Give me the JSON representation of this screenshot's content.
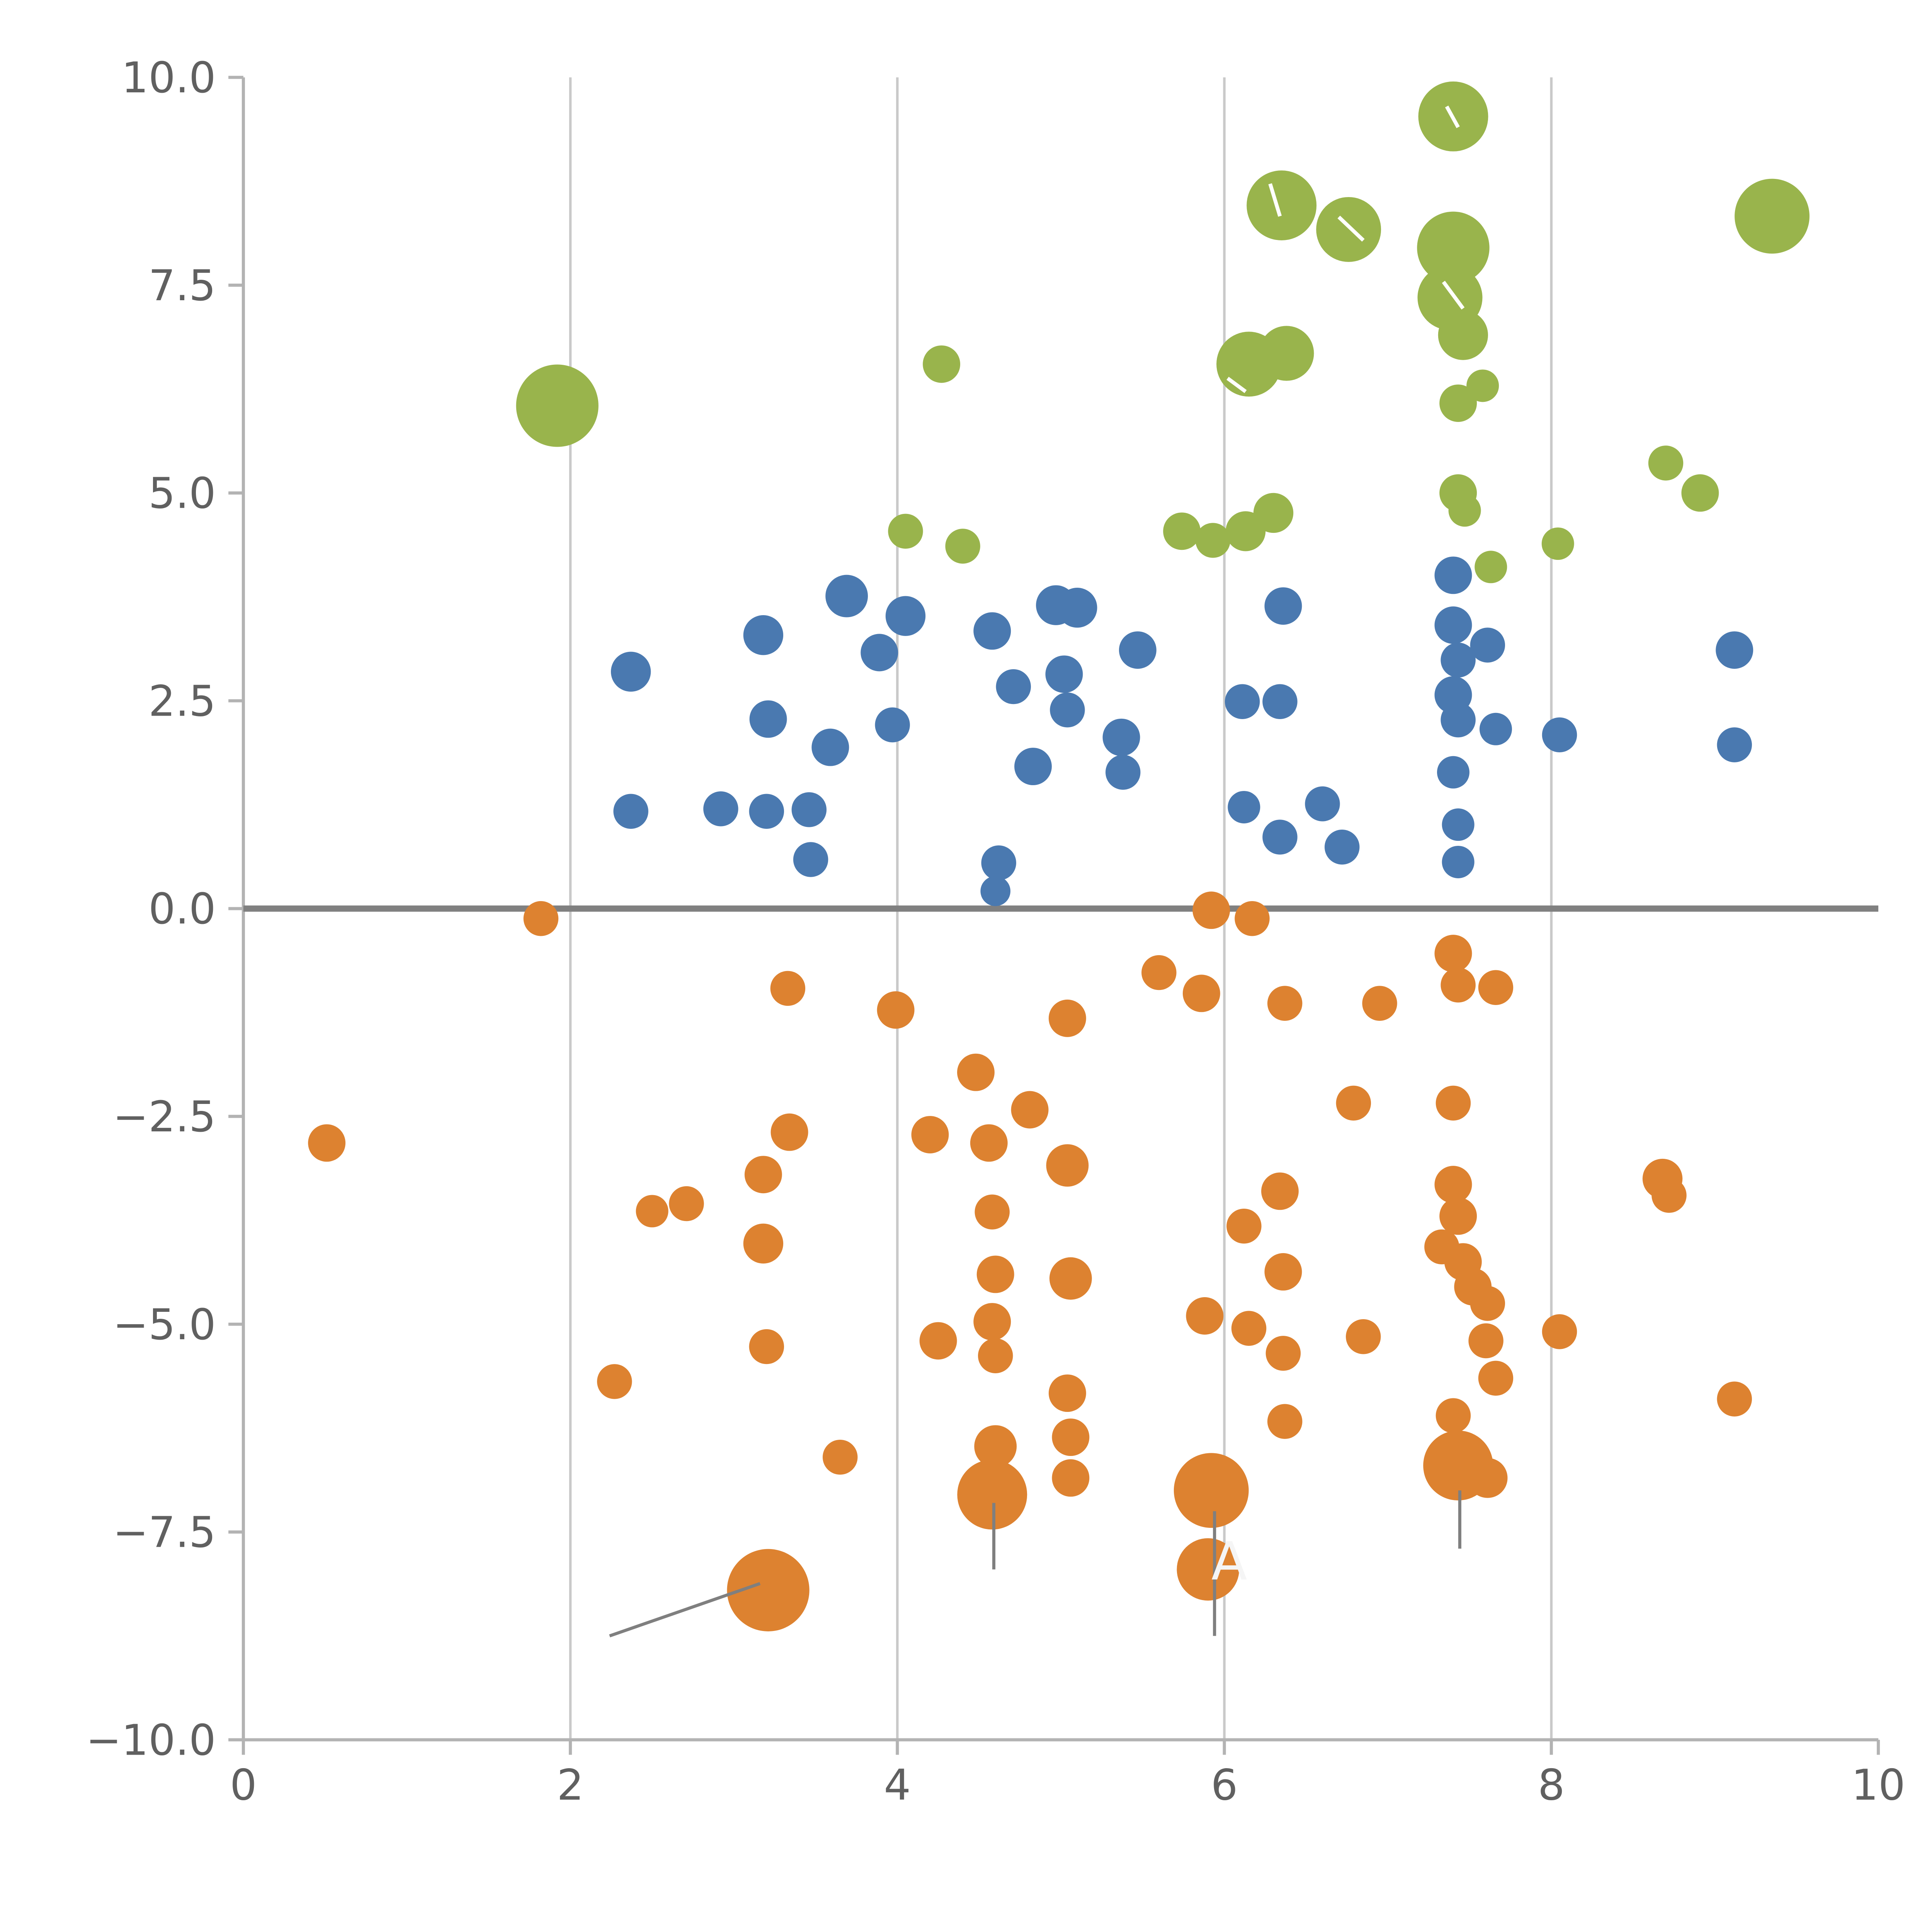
{
  "page": {
    "background": "#ffffff"
  },
  "chart_data": {
    "type": "scatter",
    "title": "",
    "xlabel": "",
    "ylabel": "",
    "xlim": [
      0,
      10
    ],
    "ylim": [
      -10,
      10
    ],
    "grid": {
      "vertical_x": [
        2,
        4,
        6,
        8
      ],
      "horizontal": false
    },
    "x_ticks": {
      "values": [
        0,
        2,
        4,
        6,
        8,
        10
      ],
      "labels": [
        "0",
        "2",
        "4",
        "6",
        "8",
        "10"
      ]
    },
    "y_ticks": {
      "values": [
        -10,
        -7.5,
        -5,
        -2.5,
        0,
        2.5,
        5,
        7.5,
        10
      ],
      "labels": [
        "−10.0",
        "−7.5",
        "−5.0",
        "−2.5",
        "0.0",
        "2.5",
        "5.0",
        "7.5",
        "10.0"
      ]
    },
    "zero_line_y": 0,
    "legend": null,
    "colors": {
      "green": "#99b44c",
      "blue": "#4a79b0",
      "orange": "#dd8230",
      "grid": "#c9c9c9",
      "spine": "#b3b3b3",
      "tick_label": "#606060",
      "zero_line": "#808080",
      "annotation_line": "#7f7f7f",
      "annotation_text": "#f5f5f5",
      "highlight": "#ffffff"
    },
    "series": [
      {
        "name": "green",
        "color": "#99b44c",
        "points": [
          [
            1.92,
            6.05,
            33
          ],
          [
            4.27,
            6.55,
            15
          ],
          [
            4.05,
            4.54,
            14
          ],
          [
            4.4,
            4.36,
            14
          ],
          [
            5.74,
            4.54,
            15
          ],
          [
            5.93,
            4.43,
            14
          ],
          [
            6.13,
            4.54,
            16
          ],
          [
            6.3,
            4.76,
            16
          ],
          [
            6.15,
            6.55,
            26
          ],
          [
            6.38,
            6.68,
            22
          ],
          [
            6.35,
            8.46,
            28
          ],
          [
            6.76,
            8.17,
            26
          ],
          [
            7.4,
            9.53,
            28
          ],
          [
            7.4,
            7.95,
            29
          ],
          [
            7.38,
            7.35,
            26
          ],
          [
            7.46,
            6.9,
            20
          ],
          [
            7.43,
            6.08,
            15
          ],
          [
            7.58,
            6.29,
            13
          ],
          [
            7.43,
            5.0,
            15
          ],
          [
            7.47,
            4.79,
            13
          ],
          [
            7.63,
            4.11,
            13
          ],
          [
            8.04,
            4.39,
            13
          ],
          [
            8.7,
            5.36,
            14
          ],
          [
            8.91,
            5.0,
            15
          ],
          [
            9.35,
            8.33,
            30
          ]
        ]
      },
      {
        "name": "blue",
        "color": "#4a79b0",
        "points": [
          [
            2.37,
            2.85,
            16
          ],
          [
            2.37,
            1.17,
            14
          ],
          [
            2.92,
            1.2,
            14
          ],
          [
            3.18,
            3.29,
            16
          ],
          [
            3.21,
            2.28,
            15
          ],
          [
            3.2,
            1.17,
            14
          ],
          [
            3.46,
            1.19,
            14
          ],
          [
            3.47,
            0.59,
            14
          ],
          [
            3.59,
            1.94,
            15
          ],
          [
            3.69,
            3.76,
            17
          ],
          [
            3.89,
            3.08,
            15
          ],
          [
            4.05,
            3.52,
            16
          ],
          [
            3.97,
            2.21,
            14
          ],
          [
            4.58,
            3.34,
            15
          ],
          [
            4.62,
            0.55,
            14
          ],
          [
            4.6,
            0.21,
            12
          ],
          [
            4.71,
            2.67,
            14
          ],
          [
            4.83,
            1.71,
            15
          ],
          [
            4.97,
            3.65,
            16
          ],
          [
            5.1,
            3.62,
            16
          ],
          [
            5.02,
            2.82,
            15
          ],
          [
            5.04,
            2.39,
            14
          ],
          [
            5.37,
            2.06,
            15
          ],
          [
            5.38,
            1.64,
            14
          ],
          [
            5.47,
            3.11,
            15
          ],
          [
            6.11,
            2.49,
            14
          ],
          [
            6.12,
            1.22,
            13
          ],
          [
            6.34,
            2.49,
            14
          ],
          [
            6.34,
            0.86,
            14
          ],
          [
            6.36,
            3.64,
            15
          ],
          [
            6.6,
            1.26,
            14
          ],
          [
            6.72,
            0.74,
            14
          ],
          [
            7.4,
            4.01,
            15
          ],
          [
            7.4,
            3.41,
            15
          ],
          [
            7.43,
            2.99,
            14
          ],
          [
            7.4,
            2.57,
            15
          ],
          [
            7.43,
            2.27,
            14
          ],
          [
            7.4,
            1.64,
            13
          ],
          [
            7.43,
            1.01,
            13
          ],
          [
            7.43,
            0.56,
            13
          ],
          [
            7.61,
            3.17,
            14
          ],
          [
            7.66,
            2.16,
            13
          ],
          [
            8.05,
            2.09,
            14
          ],
          [
            9.12,
            3.11,
            15
          ],
          [
            9.12,
            1.97,
            14
          ]
        ]
      },
      {
        "name": "orange",
        "color": "#dd8230",
        "points": [
          [
            0.51,
            -2.82,
            15
          ],
          [
            1.82,
            -0.12,
            14
          ],
          [
            2.27,
            -5.69,
            14
          ],
          [
            2.5,
            -3.64,
            13
          ],
          [
            2.71,
            -3.55,
            14
          ],
          [
            3.18,
            -3.2,
            15
          ],
          [
            3.18,
            -4.03,
            16
          ],
          [
            3.2,
            -5.27,
            14
          ],
          [
            3.33,
            -0.96,
            14
          ],
          [
            3.34,
            -2.69,
            15
          ],
          [
            3.65,
            -6.6,
            14
          ],
          [
            3.21,
            -8.2,
            33
          ],
          [
            3.99,
            -1.22,
            15
          ],
          [
            4.2,
            -2.72,
            15
          ],
          [
            4.25,
            -5.2,
            15
          ],
          [
            4.48,
            -1.97,
            15
          ],
          [
            4.56,
            -2.82,
            15
          ],
          [
            4.58,
            -3.65,
            14
          ],
          [
            4.6,
            -4.4,
            15
          ],
          [
            4.58,
            -4.97,
            15
          ],
          [
            4.6,
            -5.38,
            14
          ],
          [
            4.6,
            -6.47,
            17
          ],
          [
            4.58,
            -7.05,
            28
          ],
          [
            4.81,
            -2.42,
            15
          ],
          [
            5.04,
            -1.32,
            15
          ],
          [
            5.04,
            -3.09,
            17
          ],
          [
            5.06,
            -4.45,
            17
          ],
          [
            5.04,
            -5.83,
            15
          ],
          [
            5.06,
            -6.36,
            15
          ],
          [
            5.06,
            -6.85,
            15
          ],
          [
            5.6,
            -0.77,
            14
          ],
          [
            5.86,
            -1.02,
            15
          ],
          [
            5.88,
            -4.9,
            15
          ],
          [
            5.92,
            -0.02,
            15
          ],
          [
            6.17,
            -0.12,
            14
          ],
          [
            6.12,
            -3.82,
            14
          ],
          [
            6.15,
            -5.05,
            14
          ],
          [
            6.34,
            -3.4,
            15
          ],
          [
            6.36,
            -4.37,
            15
          ],
          [
            6.36,
            -5.35,
            14
          ],
          [
            6.37,
            -6.17,
            14
          ],
          [
            6.37,
            -1.14,
            14
          ],
          [
            5.92,
            -7.0,
            30
          ],
          [
            5.9,
            -7.95,
            25
          ],
          [
            6.79,
            -2.34,
            14
          ],
          [
            6.85,
            -5.15,
            14
          ],
          [
            6.95,
            -1.14,
            14
          ],
          [
            7.4,
            -0.54,
            15
          ],
          [
            7.43,
            -0.92,
            14
          ],
          [
            7.66,
            -0.95,
            14
          ],
          [
            7.4,
            -2.34,
            14
          ],
          [
            7.4,
            -3.32,
            15
          ],
          [
            7.43,
            -3.7,
            15
          ],
          [
            7.33,
            -4.07,
            14
          ],
          [
            7.46,
            -4.25,
            15
          ],
          [
            7.52,
            -4.55,
            15
          ],
          [
            7.61,
            -4.75,
            14
          ],
          [
            7.6,
            -5.2,
            14
          ],
          [
            7.66,
            -5.65,
            14
          ],
          [
            7.4,
            -6.1,
            14
          ],
          [
            7.43,
            -6.7,
            28
          ],
          [
            7.61,
            -6.85,
            16
          ],
          [
            8.05,
            -5.09,
            14
          ],
          [
            8.68,
            -3.25,
            16
          ],
          [
            8.72,
            -3.45,
            14
          ],
          [
            9.12,
            -5.9,
            14
          ]
        ]
      }
    ],
    "annotations": {
      "text": [
        {
          "label": "A",
          "x": 6.03,
          "y": -7.85,
          "color": "#f5f5f5",
          "size": 42
        }
      ],
      "lines": [
        {
          "x1": 2.24,
          "y1": -8.75,
          "x2": 3.16,
          "y2": -8.12
        },
        {
          "x1": 4.59,
          "y1": -7.15,
          "x2": 4.59,
          "y2": -7.95
        },
        {
          "x1": 5.94,
          "y1": -7.25,
          "x2": 5.94,
          "y2": -8.75
        },
        {
          "x1": 7.44,
          "y1": -7.0,
          "x2": 7.44,
          "y2": -7.7
        }
      ],
      "highlight_segments": [
        {
          "x1": 6.28,
          "y1": 8.72,
          "x2": 6.34,
          "y2": 8.33
        },
        {
          "x1": 6.7,
          "y1": 8.32,
          "x2": 6.85,
          "y2": 8.04
        },
        {
          "x1": 7.34,
          "y1": 7.54,
          "x2": 7.46,
          "y2": 7.22
        },
        {
          "x1": 7.36,
          "y1": 9.65,
          "x2": 7.43,
          "y2": 9.4
        },
        {
          "x1": 6.02,
          "y1": 6.38,
          "x2": 6.13,
          "y2": 6.22
        }
      ]
    }
  }
}
